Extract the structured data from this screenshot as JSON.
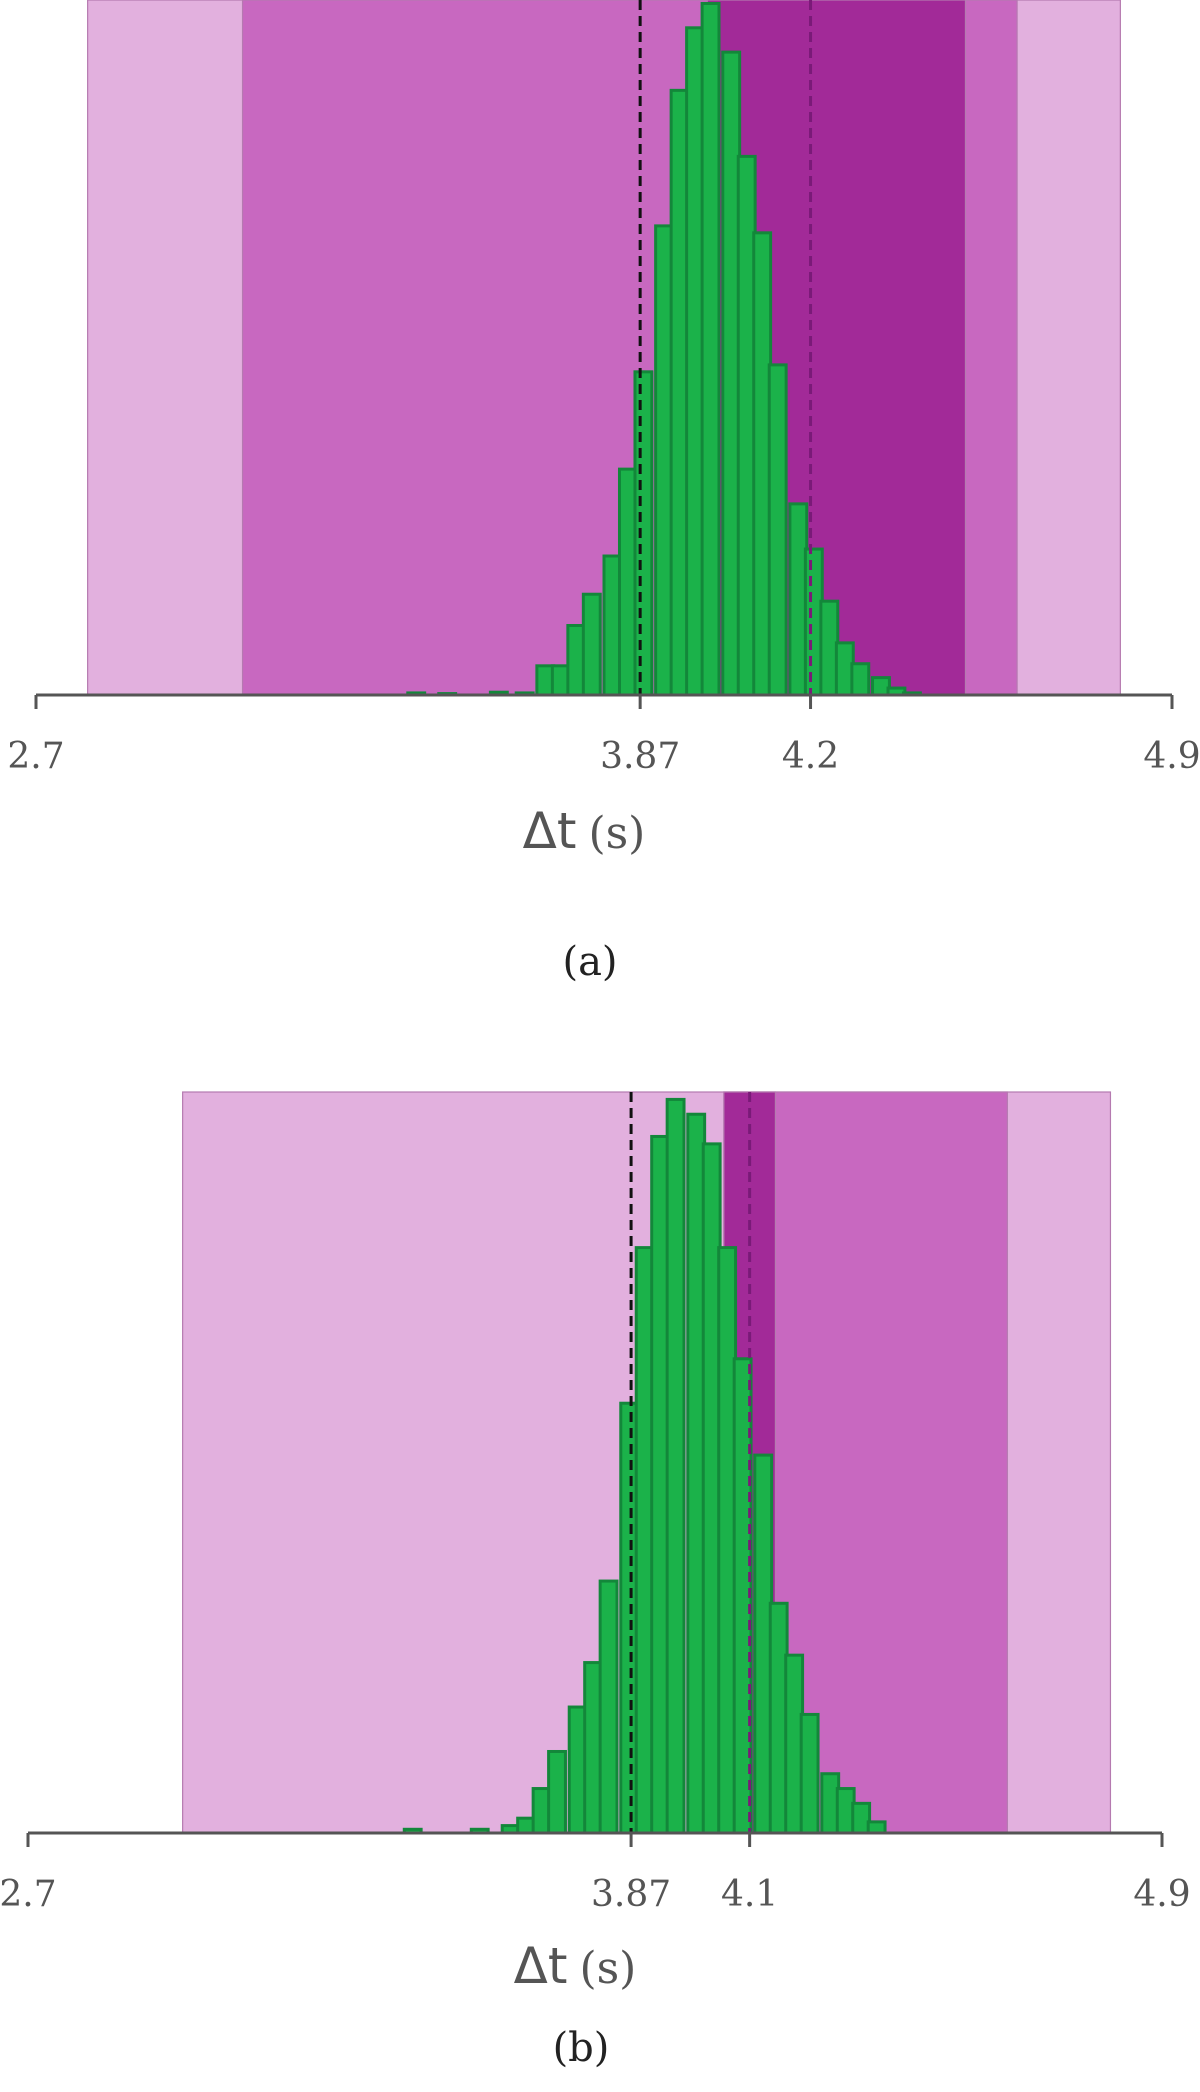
{
  "chart_data": [
    {
      "type": "bar",
      "panel_label": "(a)",
      "xlabel_symbol": "Δt",
      "xlabel_unit": "(s)",
      "xlim": [
        2.7,
        4.9
      ],
      "tick_values": [
        2.7,
        3.87,
        4.2,
        4.9
      ],
      "tick_labels": [
        "2.7",
        "3.87",
        "4.2",
        "4.9"
      ],
      "reference_lines": [
        {
          "x": 3.87,
          "color": "#111111",
          "style": "dashed"
        },
        {
          "x": 4.2,
          "color": "#7a1a78",
          "style": "dashed"
        }
      ],
      "bands": [
        {
          "x0": 2.8,
          "x1": 4.8,
          "color": "#e2b0de"
        },
        {
          "x0": 3.1,
          "x1": 4.6,
          "color": "#c868c0"
        },
        {
          "x0": 4.0,
          "x1": 4.5,
          "color": "#a22a98"
        }
      ],
      "histogram": {
        "color": "#1bb24a",
        "edge_color": "#13873a",
        "bin_width": 0.0327,
        "bin_starts": [
          3.42,
          3.48,
          3.58,
          3.63,
          3.67,
          3.7,
          3.73,
          3.76,
          3.8,
          3.83,
          3.86,
          3.9,
          3.93,
          3.96,
          3.99,
          4.03,
          4.06,
          4.09,
          4.12,
          4.16,
          4.19,
          4.22,
          4.25,
          4.28,
          4.32,
          4.35,
          4.38
        ],
        "values": [
          0.3,
          0.2,
          0.4,
          0.3,
          4.2,
          4.2,
          10,
          14.5,
          20,
          32.5,
          46.5,
          67.5,
          87,
          96,
          99.5,
          92.5,
          77.5,
          66.5,
          47.5,
          27.5,
          21,
          13.5,
          7.5,
          4.5,
          2.5,
          1,
          0.3
        ],
        "ylim": [
          0,
          100
        ]
      }
    },
    {
      "type": "bar",
      "panel_label": "(b)",
      "xlabel_symbol": "Δt",
      "xlabel_unit": "(s)",
      "xlim": [
        2.7,
        4.9
      ],
      "tick_values": [
        2.7,
        3.87,
        4.1,
        4.9
      ],
      "tick_labels": [
        "2.7",
        "3.87",
        "4.1",
        "4.9"
      ],
      "reference_lines": [
        {
          "x": 3.87,
          "color": "#111111",
          "style": "dashed"
        },
        {
          "x": 4.1,
          "color": "#7a1a78",
          "style": "dashed"
        }
      ],
      "bands": [
        {
          "x0": 3.0,
          "x1": 4.8,
          "color": "#e2b0de"
        },
        {
          "x0": 4.05,
          "x1": 4.6,
          "color": "#c868c0"
        },
        {
          "x0": 4.05,
          "x1": 4.15,
          "color": "#a22a98"
        }
      ],
      "histogram": {
        "color": "#1bb24a",
        "edge_color": "#13873a",
        "bin_width": 0.0327,
        "bin_starts": [
          3.43,
          3.56,
          3.62,
          3.65,
          3.68,
          3.71,
          3.75,
          3.78,
          3.81,
          3.85,
          3.88,
          3.91,
          3.94,
          3.98,
          4.01,
          4.04,
          4.07,
          4.11,
          4.14,
          4.17,
          4.2,
          4.24,
          4.27,
          4.3,
          4.33
        ],
        "values": [
          0.5,
          0.5,
          1,
          2,
          6,
          11,
          17,
          23,
          34,
          58,
          79,
          94,
          99,
          97,
          93,
          79,
          64,
          51,
          31,
          24,
          16,
          8,
          6,
          4,
          1.5
        ],
        "ylim": [
          0,
          100
        ]
      }
    }
  ]
}
